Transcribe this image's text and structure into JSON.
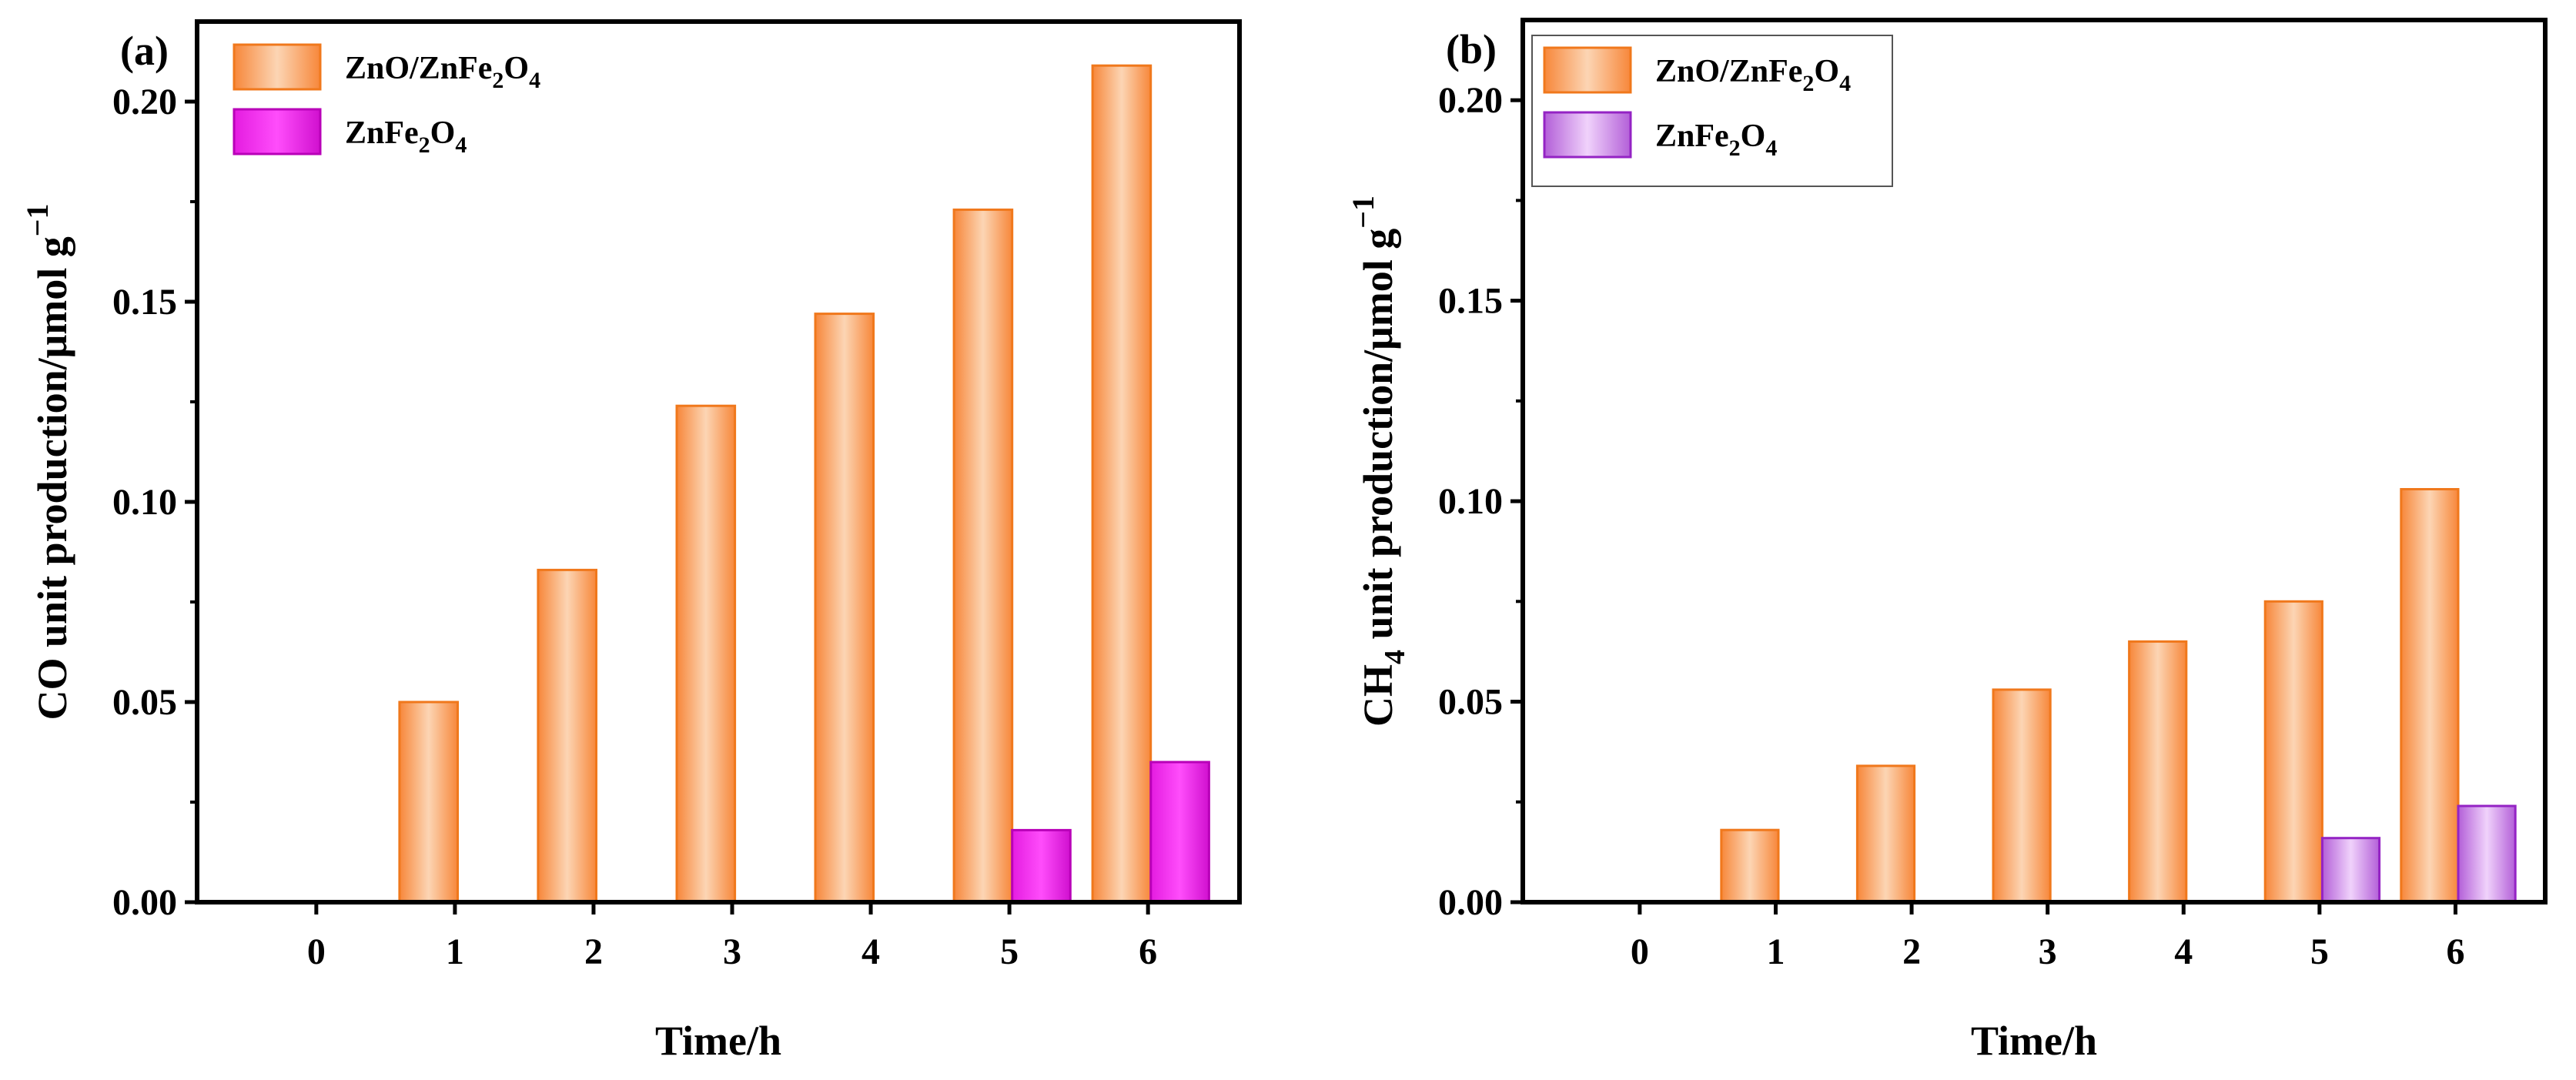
{
  "colors": {
    "zno_fill": "#f79a4f",
    "zno_edge": "#f57c1f",
    "znfe_fill_a": "#ee1ee8",
    "znfe_edge_a": "#c000c0",
    "znfe_fill_b": "#cf80e8",
    "znfe_edge_b": "#9c1fc7"
  },
  "chart_data": [
    {
      "panel": "(a)",
      "type": "bar",
      "title": "",
      "xlabel": "Time/h",
      "ylabel": "CO unit production/μmol g⁻¹",
      "categories": [
        "0",
        "1",
        "2",
        "3",
        "4",
        "5",
        "6"
      ],
      "ylim": [
        0,
        0.22
      ],
      "yticks": [
        "0.00",
        "0.05",
        "0.10",
        "0.15",
        "0.20"
      ],
      "legend": "top-left",
      "series": [
        {
          "name": "ZnO/ZnFe2O4",
          "label_main": "ZnO/ZnFe",
          "sub1": "2",
          "mid": "O",
          "sub2": "4",
          "values": [
            0,
            0.05,
            0.083,
            0.124,
            0.147,
            0.173,
            0.209
          ]
        },
        {
          "name": "ZnFe2O4",
          "label_main": "ZnFe",
          "sub1": "2",
          "mid": "O",
          "sub2": "4",
          "values": [
            0,
            0,
            0,
            0,
            0,
            0.018,
            0.035
          ]
        }
      ]
    },
    {
      "panel": "(b)",
      "type": "bar",
      "title": "",
      "xlabel": "Time/h",
      "ylabel": "CH4 unit production/μmol g⁻¹",
      "ylabel_parts": {
        "pre": "CH",
        "sub": "4",
        "post": " unit production/μmol g",
        "sup": "−1"
      },
      "categories": [
        "0",
        "1",
        "2",
        "3",
        "4",
        "5",
        "6"
      ],
      "ylim": [
        0,
        0.22
      ],
      "yticks": [
        "0.00",
        "0.05",
        "0.10",
        "0.15",
        "0.20"
      ],
      "legend": "top-left",
      "series": [
        {
          "name": "ZnO/ZnFe2O4",
          "label_main": "ZnO/ZnFe",
          "sub1": "2",
          "mid": "O",
          "sub2": "4",
          "values": [
            0,
            0.018,
            0.034,
            0.053,
            0.065,
            0.075,
            0.103
          ]
        },
        {
          "name": "ZnFe2O4",
          "label_main": "ZnFe",
          "sub1": "2",
          "mid": "O",
          "sub2": "4",
          "values": [
            0,
            0,
            0,
            0,
            0,
            0.016,
            0.024
          ]
        }
      ]
    }
  ],
  "ylabel_a_parts": {
    "pre": "CO unit production/μmol g",
    "sup": "−1"
  }
}
